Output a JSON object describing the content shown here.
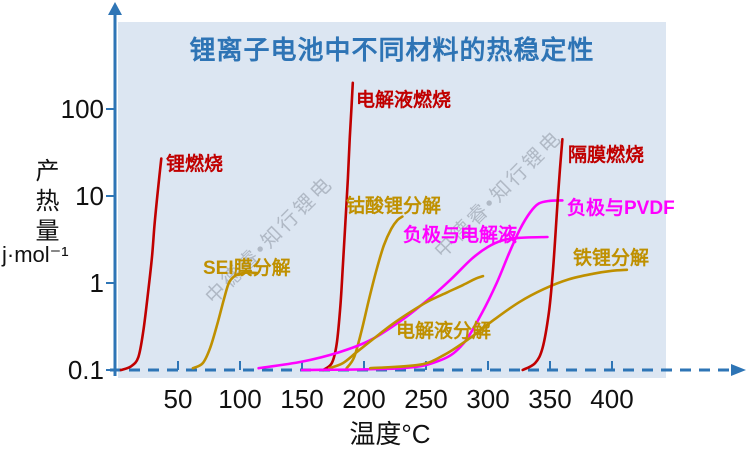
{
  "title": "锂离子电池中不同材料的热稳定性",
  "watermark": {
    "text": "中德睿•知行锂电"
  },
  "axes": {
    "y_title": "产热量",
    "y_unit": "j·mol⁻¹",
    "x_title": "温度°C",
    "y_ticks": [
      "100",
      "10",
      "1",
      "0.1"
    ],
    "x_ticks": [
      "50",
      "100",
      "150",
      "200",
      "250",
      "300",
      "350",
      "400"
    ]
  },
  "colors": {
    "axis": "#2e75b6",
    "panel": "#dce6f2",
    "title": "#2e74b5",
    "dark_red": "#c00000",
    "gold": "#bf9000",
    "magenta": "#ff00ff"
  },
  "chart_data": {
    "type": "line",
    "title": "锂离子电池中不同材料的热稳定性",
    "xlabel": "温度°C",
    "ylabel": "产热量 j·mol⁻¹",
    "x_range": [
      0,
      450
    ],
    "y_scale": "log",
    "y_range": [
      0.1,
      300
    ],
    "grid": false,
    "legend_position": "inline-labels",
    "series": [
      {
        "name": "锂燃烧",
        "color": "#c00000",
        "points": [
          [
            4,
            0.1
          ],
          [
            12,
            0.11
          ],
          [
            18,
            0.14
          ],
          [
            22,
            0.28
          ],
          [
            26,
            0.8
          ],
          [
            29,
            2
          ],
          [
            31,
            4.5
          ],
          [
            33,
            9
          ],
          [
            35,
            17
          ],
          [
            36.5,
            27
          ]
        ]
      },
      {
        "name": "SEI膜分解",
        "color": "#bf9000",
        "points": [
          [
            62,
            0.105
          ],
          [
            70,
            0.12
          ],
          [
            76,
            0.18
          ],
          [
            82,
            0.35
          ],
          [
            87,
            0.65
          ],
          [
            91,
            1.0
          ],
          [
            95,
            1.18
          ],
          [
            100,
            1.28
          ],
          [
            107,
            1.32
          ],
          [
            114,
            1.3
          ]
        ]
      },
      {
        "name": "电解液燃烧",
        "color": "#c00000",
        "points": [
          [
            167,
            0.1
          ],
          [
            174,
            0.12
          ],
          [
            178,
            0.2
          ],
          [
            181,
            0.55
          ],
          [
            183,
            1.6
          ],
          [
            185,
            5
          ],
          [
            187,
            16
          ],
          [
            188.5,
            45
          ],
          [
            190,
            110
          ],
          [
            191,
            200
          ]
        ]
      },
      {
        "name": "钴酸锂分解",
        "color": "#bf9000",
        "points": [
          [
            186,
            0.105
          ],
          [
            192,
            0.14
          ],
          [
            198,
            0.28
          ],
          [
            204,
            0.65
          ],
          [
            210,
            1.4
          ],
          [
            216,
            2.7
          ],
          [
            222,
            4.2
          ],
          [
            227,
            5.3
          ],
          [
            231,
            5.8
          ]
        ]
      },
      {
        "name": "负极与电解液",
        "color": "#ff00ff",
        "points": [
          [
            115,
            0.105
          ],
          [
            150,
            0.125
          ],
          [
            180,
            0.16
          ],
          [
            205,
            0.22
          ],
          [
            230,
            0.37
          ],
          [
            252,
            0.65
          ],
          [
            270,
            1.1
          ],
          [
            287,
            1.9
          ],
          [
            300,
            2.6
          ],
          [
            312,
            3.1
          ],
          [
            324,
            3.3
          ],
          [
            348,
            3.38
          ]
        ]
      },
      {
        "name": "电解液分解",
        "color": "#bf9000",
        "points": [
          [
            172,
            0.105
          ],
          [
            183,
            0.12
          ],
          [
            194,
            0.16
          ],
          [
            208,
            0.23
          ],
          [
            222,
            0.33
          ],
          [
            237,
            0.46
          ],
          [
            252,
            0.62
          ],
          [
            267,
            0.78
          ],
          [
            280,
            0.95
          ],
          [
            290,
            1.12
          ],
          [
            296,
            1.2
          ]
        ]
      },
      {
        "name": "负极与PVDF",
        "color": "#ff00ff",
        "points": [
          [
            150,
            0.1
          ],
          [
            230,
            0.105
          ],
          [
            262,
            0.13
          ],
          [
            280,
            0.2
          ],
          [
            295,
            0.45
          ],
          [
            307,
            1.0
          ],
          [
            317,
            2.2
          ],
          [
            326,
            4.2
          ],
          [
            334,
            6.5
          ],
          [
            341,
            8.2
          ],
          [
            350,
            8.8
          ],
          [
            360,
            8.9
          ]
        ]
      },
      {
        "name": "铁锂分解",
        "color": "#bf9000",
        "points": [
          [
            205,
            0.105
          ],
          [
            245,
            0.115
          ],
          [
            265,
            0.15
          ],
          [
            285,
            0.23
          ],
          [
            305,
            0.38
          ],
          [
            325,
            0.6
          ],
          [
            345,
            0.85
          ],
          [
            365,
            1.1
          ],
          [
            385,
            1.28
          ],
          [
            400,
            1.38
          ],
          [
            412,
            1.42
          ]
        ]
      },
      {
        "name": "隔膜燃烧",
        "color": "#c00000",
        "points": [
          [
            328,
            0.1
          ],
          [
            338,
            0.12
          ],
          [
            344,
            0.18
          ],
          [
            349,
            0.45
          ],
          [
            352,
            1.2
          ],
          [
            354,
            3
          ],
          [
            356,
            8
          ],
          [
            358,
            20
          ],
          [
            360,
            45
          ]
        ]
      }
    ]
  }
}
